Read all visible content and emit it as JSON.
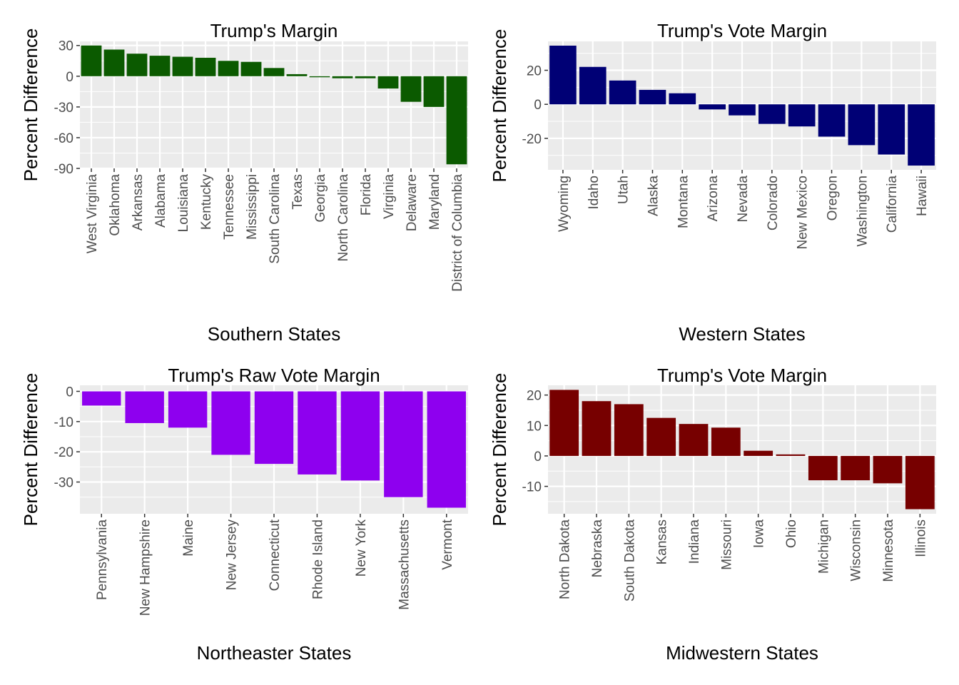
{
  "chart_data": [
    {
      "type": "bar",
      "title": "Trump's Margin",
      "xlabel": "Southern States",
      "ylabel": "Percent Difference",
      "color": "#0b5a00",
      "categories": [
        "West Virginia",
        "Oklahoma",
        "Arkansas",
        "Alabama",
        "Louisiana",
        "Kentucky",
        "Tennessee",
        "Mississippi",
        "South Carolina",
        "Texas",
        "Georgia",
        "North Carolina",
        "Florida",
        "Virginia",
        "Delaware",
        "Maryland",
        "District of Columbia"
      ],
      "values": [
        30,
        26,
        22,
        20,
        19,
        18,
        15,
        14,
        8,
        2,
        -1,
        -2,
        -2,
        -12,
        -25,
        -30,
        -86
      ],
      "ylim": [
        -90,
        34
      ],
      "yticks": [
        30,
        0,
        -30,
        -60,
        -90
      ],
      "ytick_labels": [
        "30",
        "0",
        "-30",
        "-60",
        "-90"
      ],
      "grid": true
    },
    {
      "type": "bar",
      "title": "Trump's Vote Margin",
      "xlabel": "Western States",
      "ylabel": "Percent Difference",
      "color": "#000075",
      "categories": [
        "Wyoming",
        "Idaho",
        "Utah",
        "Alaska",
        "Montana",
        "Arizona",
        "Nevada",
        "Colorado",
        "New Mexico",
        "Oregon",
        "Washington",
        "California",
        "Hawaii"
      ],
      "values": [
        34.5,
        22,
        14,
        8.5,
        6.5,
        -3,
        -6.5,
        -11.5,
        -13,
        -19,
        -24,
        -29.5,
        -36
      ],
      "ylim": [
        -38.5,
        37
      ],
      "yticks": [
        20,
        0,
        -20
      ],
      "ytick_labels": [
        "20",
        "0",
        "-20"
      ],
      "grid": true
    },
    {
      "type": "bar",
      "title": "Trump's Raw Vote Margin",
      "xlabel": "Northeaster States",
      "ylabel": "Percent Difference",
      "color": "#8e00ef",
      "categories": [
        "Pennsylvania",
        "New Hampshire",
        "Maine",
        "New Jersey",
        "Connecticut",
        "Rhode Island",
        "New York",
        "Massachusetts",
        "Vermont"
      ],
      "values": [
        -4.7,
        -10.5,
        -12,
        -21,
        -24,
        -27.5,
        -29.5,
        -35,
        -38.5
      ],
      "ylim": [
        -40.5,
        2
      ],
      "yticks": [
        0,
        -10,
        -20,
        -30
      ],
      "ytick_labels": [
        "0",
        "-10",
        "-20",
        "-30"
      ],
      "grid": true
    },
    {
      "type": "bar",
      "title": "Trump's Vote Margin",
      "xlabel": "Midwestern States",
      "ylabel": "Percent Difference",
      "color": "#770000",
      "categories": [
        "North Dakota",
        "Nebraska",
        "South Dakota",
        "Kansas",
        "Indiana",
        "Missouri",
        "Iowa",
        "Ohio",
        "Michigan",
        "Wisconsin",
        "Minnesota",
        "Illinois"
      ],
      "values": [
        21.7,
        18,
        17,
        12.5,
        10.5,
        9.3,
        1.7,
        0.5,
        -8,
        -8,
        -9,
        -17.5
      ],
      "ylim": [
        -19,
        23.2
      ],
      "yticks": [
        20,
        10,
        0,
        -10
      ],
      "ytick_labels": [
        "20",
        "10",
        "0",
        "-10"
      ],
      "grid": true
    }
  ]
}
